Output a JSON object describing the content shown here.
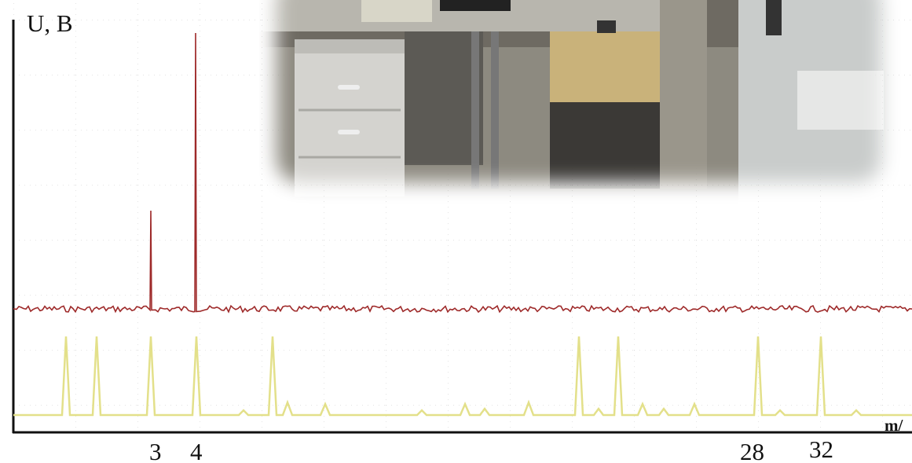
{
  "axis": {
    "y_label": "U, B",
    "x_label": "m/"
  },
  "peak_labels": [
    "3",
    "4",
    "28",
    "32"
  ]
}
